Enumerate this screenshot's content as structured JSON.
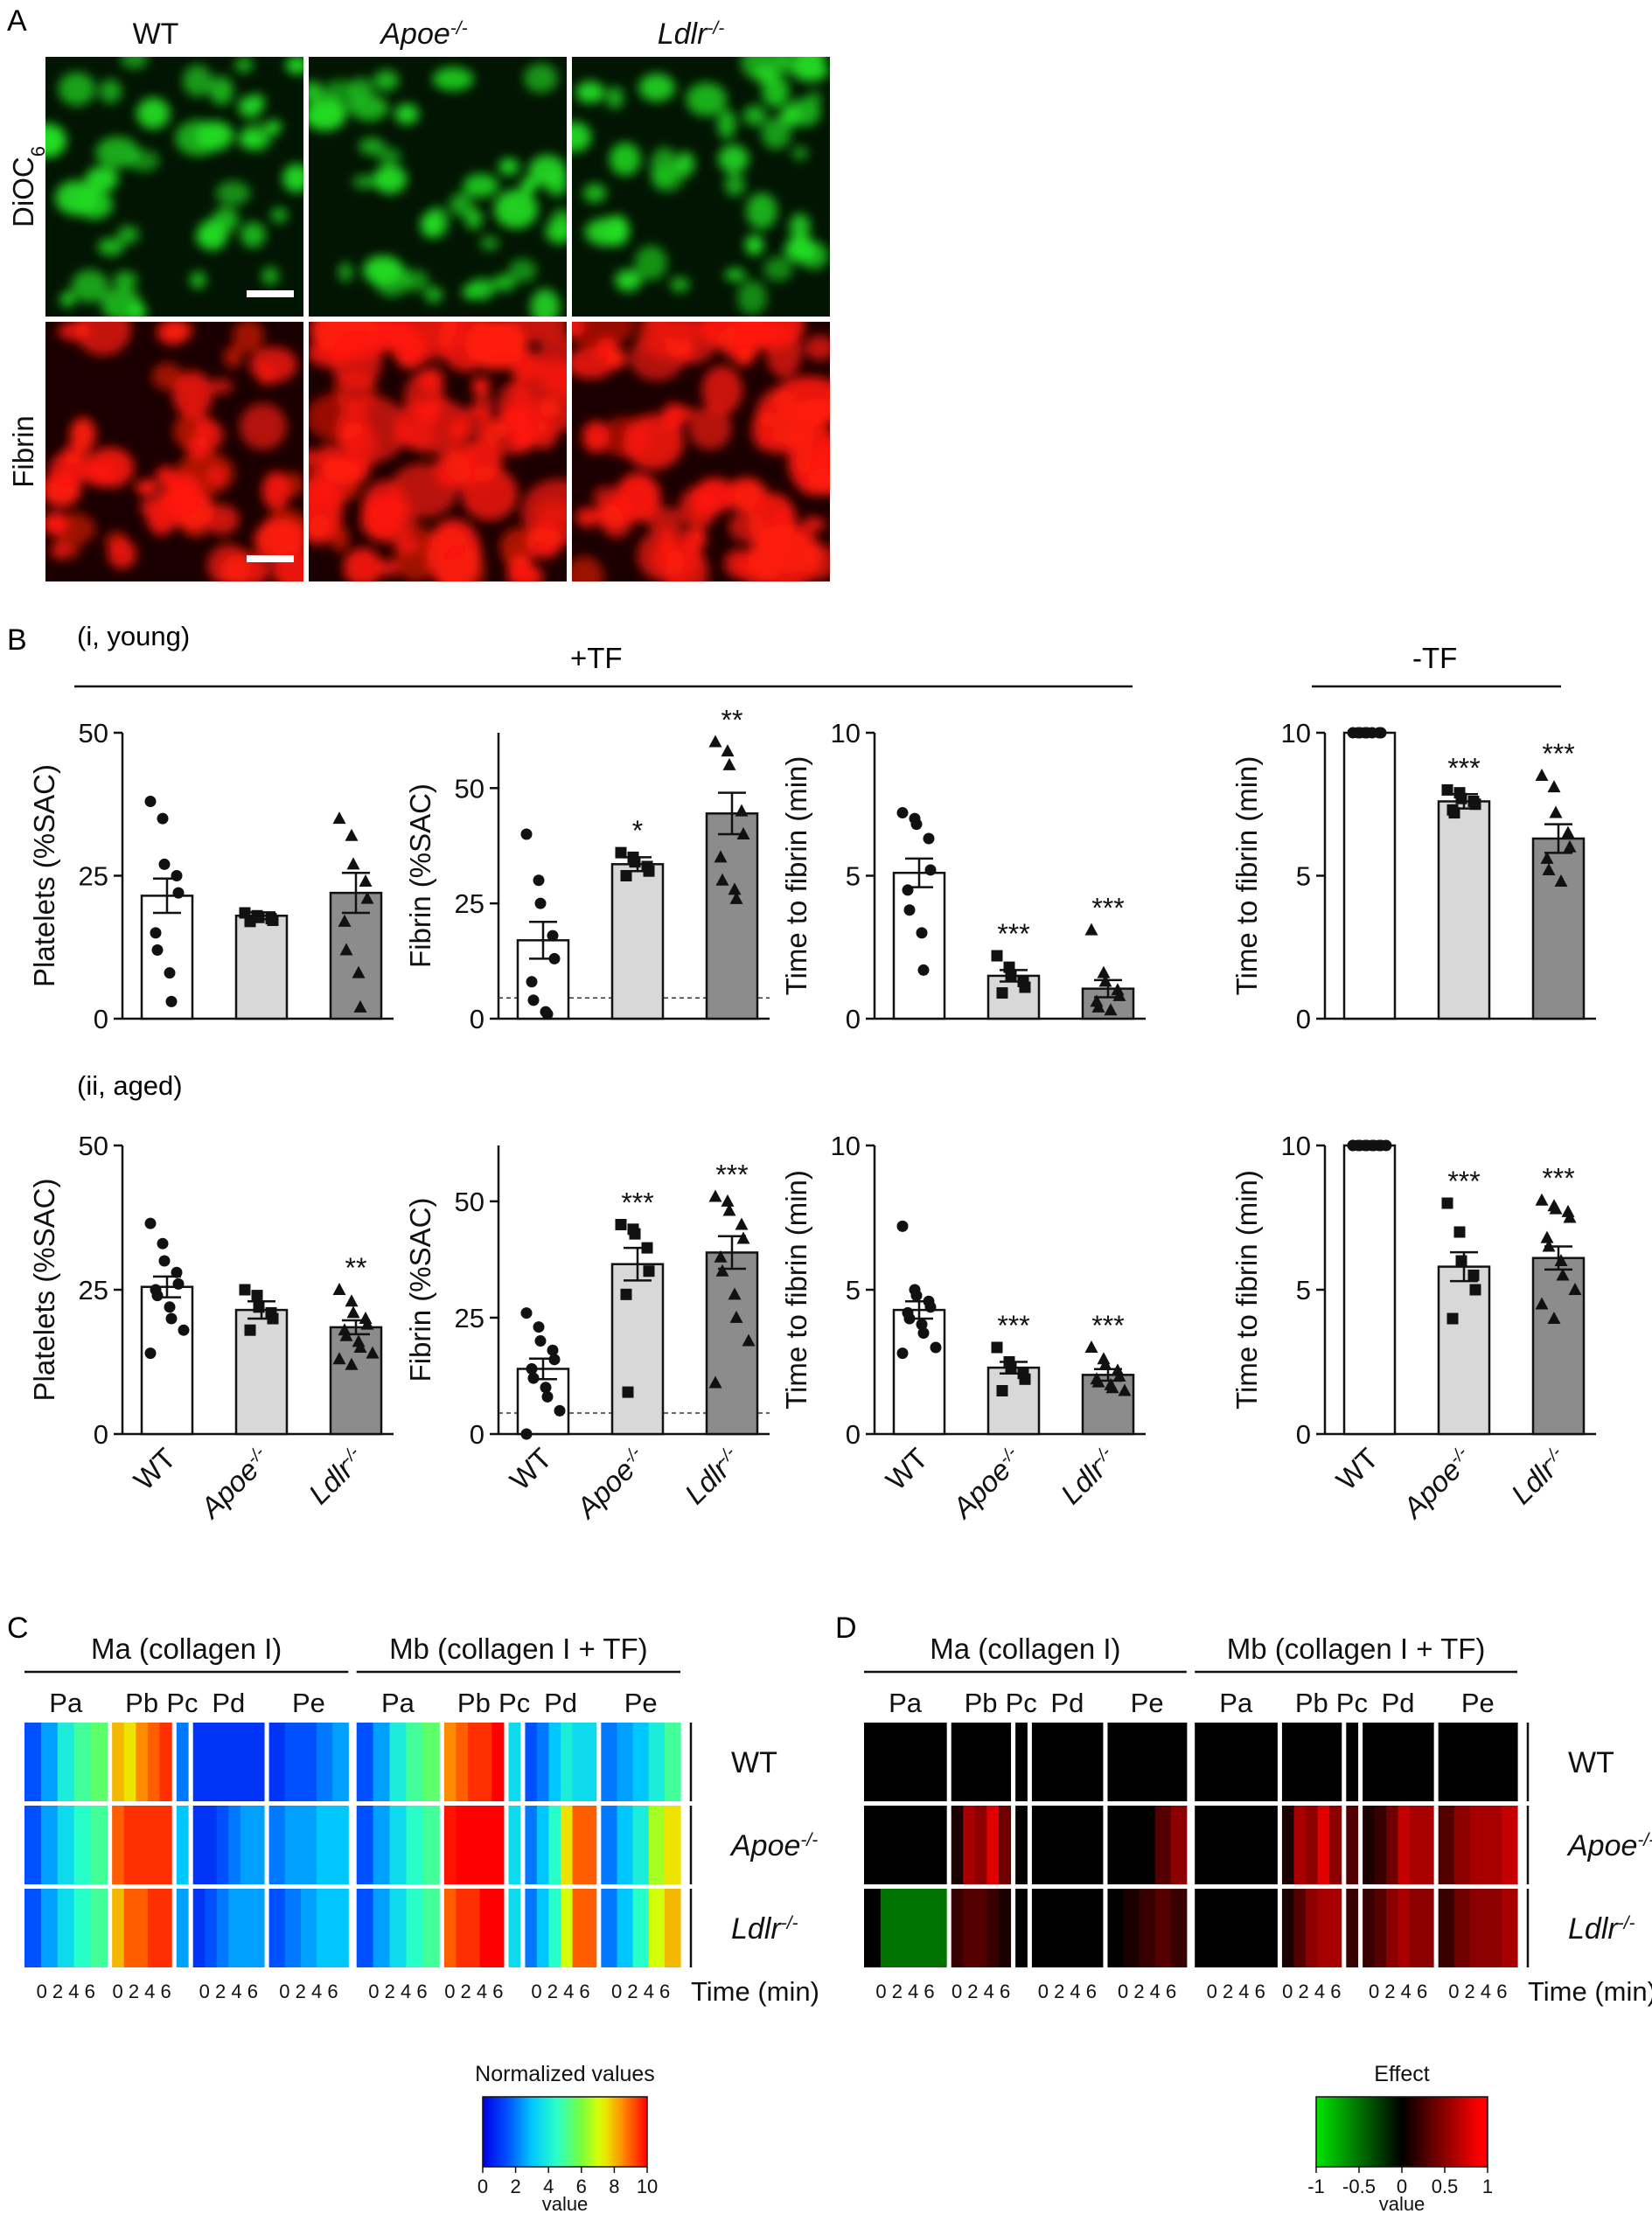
{
  "panels": {
    "A": "A",
    "B": "B",
    "C": "C",
    "D": "D"
  },
  "micrographs": {
    "columns": [
      "WT",
      "Apoe",
      "Ldlr"
    ],
    "column_sup": [
      "",
      "-/-",
      "-/-"
    ],
    "rows": [
      {
        "label": "DiOC",
        "sub": "6",
        "color": "#22dd22",
        "bg": "#021402"
      },
      {
        "label": "Fibrin",
        "sub": "",
        "color": "#ff1a0a",
        "bg": "#1a0000"
      }
    ],
    "intensity": [
      [
        0.55,
        0.75,
        0.65
      ],
      [
        0.45,
        0.95,
        0.85
      ]
    ]
  },
  "section_b": {
    "young_label": "(i, young)",
    "aged_label": "(ii, aged)",
    "plus_tf": "+TF",
    "minus_tf": "-TF"
  },
  "groups": {
    "names": [
      "WT",
      "Apoe",
      "Ldlr"
    ],
    "sup": [
      "",
      "-/-",
      "-/-"
    ],
    "colors": [
      "#ffffff",
      "#d8d8d8",
      "#8c8c8c"
    ],
    "markers": [
      "circle",
      "square",
      "triangle"
    ]
  },
  "chart_data": [
    {
      "type": "bar",
      "id": "young-platelets",
      "ylabel": "Platelets (%SAC)",
      "ylim": [
        0,
        50
      ],
      "yticks": [
        0,
        25,
        50
      ],
      "values": [
        21.5,
        18,
        22
      ],
      "sem": [
        3,
        0.6,
        3.5
      ],
      "stars": [
        "",
        "",
        ""
      ],
      "points": [
        [
          38,
          35,
          27,
          25,
          22,
          15,
          12,
          8,
          3
        ],
        [
          18.5,
          18,
          17.7,
          17.5,
          17.2,
          17
        ],
        [
          35,
          32,
          27,
          24,
          21,
          17,
          12,
          8,
          2
        ]
      ]
    },
    {
      "type": "bar",
      "id": "young-fibrin",
      "ylabel": "Fibrin (%SAC)",
      "ylim": [
        0,
        62
      ],
      "yticks": [
        0,
        25,
        50
      ],
      "dashed": 4.5,
      "values": [
        17,
        33.5,
        44.5
      ],
      "sem": [
        4,
        1.5,
        4.5
      ],
      "stars": [
        "",
        "*",
        "**"
      ],
      "points": [
        [
          40,
          30,
          25,
          18,
          13,
          8,
          4,
          1.5,
          1
        ],
        [
          36,
          35,
          34,
          33,
          32,
          31
        ],
        [
          60,
          58,
          55,
          45,
          40,
          35,
          30,
          28,
          26
        ]
      ]
    },
    {
      "type": "bar",
      "id": "young-time-tf",
      "ylabel": "Time to fibrin (min)",
      "ylim": [
        0,
        10
      ],
      "yticks": [
        0,
        5,
        10
      ],
      "values": [
        5.1,
        1.5,
        1.05
      ],
      "sem": [
        0.5,
        0.2,
        0.3
      ],
      "stars": [
        "",
        "***",
        "***"
      ],
      "points": [
        [
          7.2,
          7,
          6.8,
          6.3,
          5.2,
          4.5,
          3.8,
          3,
          1.7
        ],
        [
          2.2,
          1.8,
          1.5,
          1.3,
          1.1,
          0.9
        ],
        [
          3.1,
          1.6,
          1.3,
          1,
          0.8,
          0.6,
          0.4,
          0.3
        ]
      ]
    },
    {
      "type": "bar",
      "id": "young-time-notf",
      "ylabel": "Time to fibrin (min)",
      "ylim": [
        0,
        10
      ],
      "yticks": [
        0,
        5,
        10
      ],
      "values": [
        10,
        7.6,
        6.3
      ],
      "sem": [
        0.05,
        0.25,
        0.5
      ],
      "stars": [
        "",
        "***",
        "***"
      ],
      "points": [
        [
          10,
          10,
          10,
          10,
          10,
          10,
          10,
          10
        ],
        [
          8,
          7.9,
          7.7,
          7.6,
          7.5,
          7.3,
          7.2
        ],
        [
          8.5,
          8.1,
          7.2,
          6.5,
          6,
          5.6,
          5.2,
          4.8
        ]
      ]
    },
    {
      "type": "bar",
      "id": "aged-platelets",
      "ylabel": "Platelets (%SAC)",
      "ylim": [
        0,
        50
      ],
      "yticks": [
        0,
        25,
        50
      ],
      "values": [
        25.5,
        21.5,
        18.5
      ],
      "sem": [
        1.8,
        1.5,
        1.2
      ],
      "stars": [
        "",
        "",
        "**"
      ],
      "points": [
        [
          36.5,
          33,
          30,
          28,
          26,
          25,
          24,
          22,
          20,
          18,
          14
        ],
        [
          25,
          24,
          22,
          21,
          20,
          18
        ],
        [
          25,
          23,
          21,
          20,
          19,
          18,
          17,
          16,
          15,
          14,
          13,
          12
        ]
      ]
    },
    {
      "type": "bar",
      "id": "aged-fibrin",
      "ylabel": "Fibrin (%SAC)",
      "ylim": [
        0,
        62
      ],
      "yticks": [
        0,
        25,
        50
      ],
      "dashed": 4.5,
      "values": [
        14,
        36.5,
        39
      ],
      "sem": [
        2.2,
        3.5,
        3.5
      ],
      "stars": [
        "",
        "***",
        "***"
      ],
      "points": [
        [
          26,
          23,
          20,
          18,
          16,
          14,
          12,
          10,
          8,
          5,
          0
        ],
        [
          45,
          44,
          43,
          40,
          35,
          30,
          9
        ],
        [
          51,
          50,
          48,
          45,
          42,
          38,
          35,
          30,
          25,
          20,
          11
        ]
      ]
    },
    {
      "type": "bar",
      "id": "aged-time-tf",
      "ylabel": "Time to fibrin (min)",
      "ylim": [
        0,
        10
      ],
      "yticks": [
        0,
        5,
        10
      ],
      "values": [
        4.3,
        2.3,
        2.05
      ],
      "sem": [
        0.3,
        0.2,
        0.2
      ],
      "stars": [
        "",
        "***",
        "***"
      ],
      "points": [
        [
          7.2,
          5,
          4.8,
          4.6,
          4.4,
          4.2,
          4,
          3.8,
          3.5,
          3,
          2.8
        ],
        [
          3,
          2.5,
          2.3,
          2.1,
          1.9,
          1.5
        ],
        [
          3,
          2.6,
          2.4,
          2.2,
          2,
          1.9,
          1.8,
          1.7,
          1.6,
          1.5
        ]
      ]
    },
    {
      "type": "bar",
      "id": "aged-time-notf",
      "ylabel": "Time to fibrin (min)",
      "ylim": [
        0,
        10
      ],
      "yticks": [
        0,
        5,
        10
      ],
      "values": [
        10,
        5.8,
        6.1
      ],
      "sem": [
        0.05,
        0.5,
        0.4
      ],
      "stars": [
        "",
        "***",
        "***"
      ],
      "points": [
        [
          10,
          10,
          10,
          10,
          10,
          10,
          10,
          10,
          10,
          10,
          10
        ],
        [
          8,
          7,
          6,
          5.5,
          5,
          4
        ],
        [
          8.1,
          7.9,
          7.8,
          7.7,
          7.5,
          6.8,
          6.5,
          6,
          5.5,
          5,
          4.5,
          4
        ]
      ]
    },
    {
      "type": "heatmap",
      "id": "heatmap-c",
      "scale": "jet",
      "range": [
        0,
        10
      ],
      "legend_title": "Normalized values",
      "legend_ticks": [
        "0",
        "2",
        "4",
        "6",
        "8",
        "10"
      ],
      "legend_xlabel": "value",
      "values": {
        "WT": [
          [
            1.5,
            2.5,
            4,
            5,
            5.5
          ],
          [
            8,
            7.5,
            8.5,
            9,
            9.5
          ],
          [
            2
          ],
          [
            1,
            1,
            1,
            1,
            1,
            1
          ],
          [
            1,
            1.5,
            1.5,
            2,
            2.5
          ],
          [
            1.5,
            2.5,
            4,
            5,
            5.5
          ],
          [
            8.5,
            9,
            9.5,
            9.5,
            10
          ],
          [
            3.5
          ],
          [
            1.5,
            2,
            3,
            4,
            3.5
          ],
          [
            2,
            2.5,
            3,
            4,
            5
          ]
        ],
        "Apoe": [
          [
            1.5,
            2.5,
            3.5,
            4.5,
            5
          ],
          [
            9,
            9.5,
            9.5,
            9.5,
            9.5
          ],
          [
            3
          ],
          [
            1,
            1,
            1.5,
            2,
            2.5,
            2.5
          ],
          [
            2,
            2.5,
            2.5,
            3,
            3
          ],
          [
            1.5,
            2.5,
            3.5,
            4.5,
            5
          ],
          [
            9.8,
            10,
            10,
            10,
            10
          ],
          [
            3.5
          ],
          [
            2,
            3,
            4.5,
            7.5,
            9
          ],
          [
            2,
            3,
            4,
            6.5,
            7.5
          ]
        ],
        "Ldlr": [
          [
            1.5,
            2.5,
            3.5,
            4.5,
            5
          ],
          [
            8,
            9,
            9,
            9.5,
            9.5
          ],
          [
            2.5
          ],
          [
            1,
            1.5,
            2,
            2.5,
            2.5,
            2.5
          ],
          [
            1.5,
            2,
            2.5,
            3,
            3
          ],
          [
            1.5,
            2.5,
            3.5,
            4.5,
            5
          ],
          [
            9,
            9.5,
            9.5,
            10,
            10
          ],
          [
            3.5
          ],
          [
            2,
            3,
            4.5,
            7,
            9
          ],
          [
            2,
            3,
            4.5,
            7,
            8
          ]
        ]
      }
    },
    {
      "type": "heatmap",
      "id": "heatmap-d",
      "scale": "effect",
      "range": [
        -1,
        1
      ],
      "legend_title": "Effect",
      "legend_ticks": [
        "-1",
        "-0.5",
        "0",
        "0.5",
        "1"
      ],
      "legend_xlabel": "value",
      "values": {
        "WT": [
          [
            0,
            0,
            0,
            0,
            0
          ],
          [
            0,
            0,
            0,
            0,
            0
          ],
          [
            0
          ],
          [
            0,
            0,
            0,
            0,
            0,
            0
          ],
          [
            0,
            0,
            0,
            0,
            0
          ],
          [
            0,
            0,
            0,
            0,
            0
          ],
          [
            0,
            0,
            0,
            0,
            0
          ],
          [
            0
          ],
          [
            0,
            0,
            0,
            0,
            0
          ],
          [
            0,
            0,
            0,
            0,
            0
          ]
        ],
        "Apoe": [
          [
            0,
            0,
            0,
            0,
            0
          ],
          [
            0.1,
            0.6,
            0.5,
            0.8,
            0.4
          ],
          [
            0
          ],
          [
            0,
            0,
            0,
            0,
            0,
            0
          ],
          [
            0,
            0,
            0,
            0.3,
            0.5
          ],
          [
            0,
            0,
            0,
            0,
            0
          ],
          [
            0.1,
            0.6,
            0.5,
            0.8,
            0.5
          ],
          [
            0.3
          ],
          [
            0.1,
            0.2,
            0.4,
            0.7,
            0.6
          ],
          [
            0.3,
            0.5,
            0.6,
            0.6,
            0.7
          ]
        ],
        "Ldlr": [
          [
            0,
            -0.5,
            -0.5,
            -0.5,
            -0.5
          ],
          [
            0.2,
            0.3,
            0.3,
            0.2,
            0.1
          ],
          [
            0
          ],
          [
            0,
            0,
            0,
            0,
            0,
            0
          ],
          [
            0,
            0.1,
            0.2,
            0.3,
            0.2
          ],
          [
            0,
            0,
            0,
            0,
            0
          ],
          [
            0.1,
            0.3,
            0.5,
            0.6,
            0.6
          ],
          [
            0.2
          ],
          [
            0.2,
            0.3,
            0.5,
            0.6,
            0.5
          ],
          [
            0.2,
            0.4,
            0.5,
            0.5,
            0.6
          ]
        ]
      }
    }
  ],
  "heatmap_labels": {
    "ma": "Ma (collagen I)",
    "mb": "Mb (collagen I + TF)",
    "params": [
      "Pa",
      "Pb",
      "Pc",
      "Pd",
      "Pe"
    ],
    "ticks": "0 2 4 6",
    "time_label": "Time (min)",
    "rows": [
      "WT",
      "Apoe",
      "Ldlr"
    ],
    "row_sup": [
      "",
      "-/-",
      "-/-"
    ]
  }
}
